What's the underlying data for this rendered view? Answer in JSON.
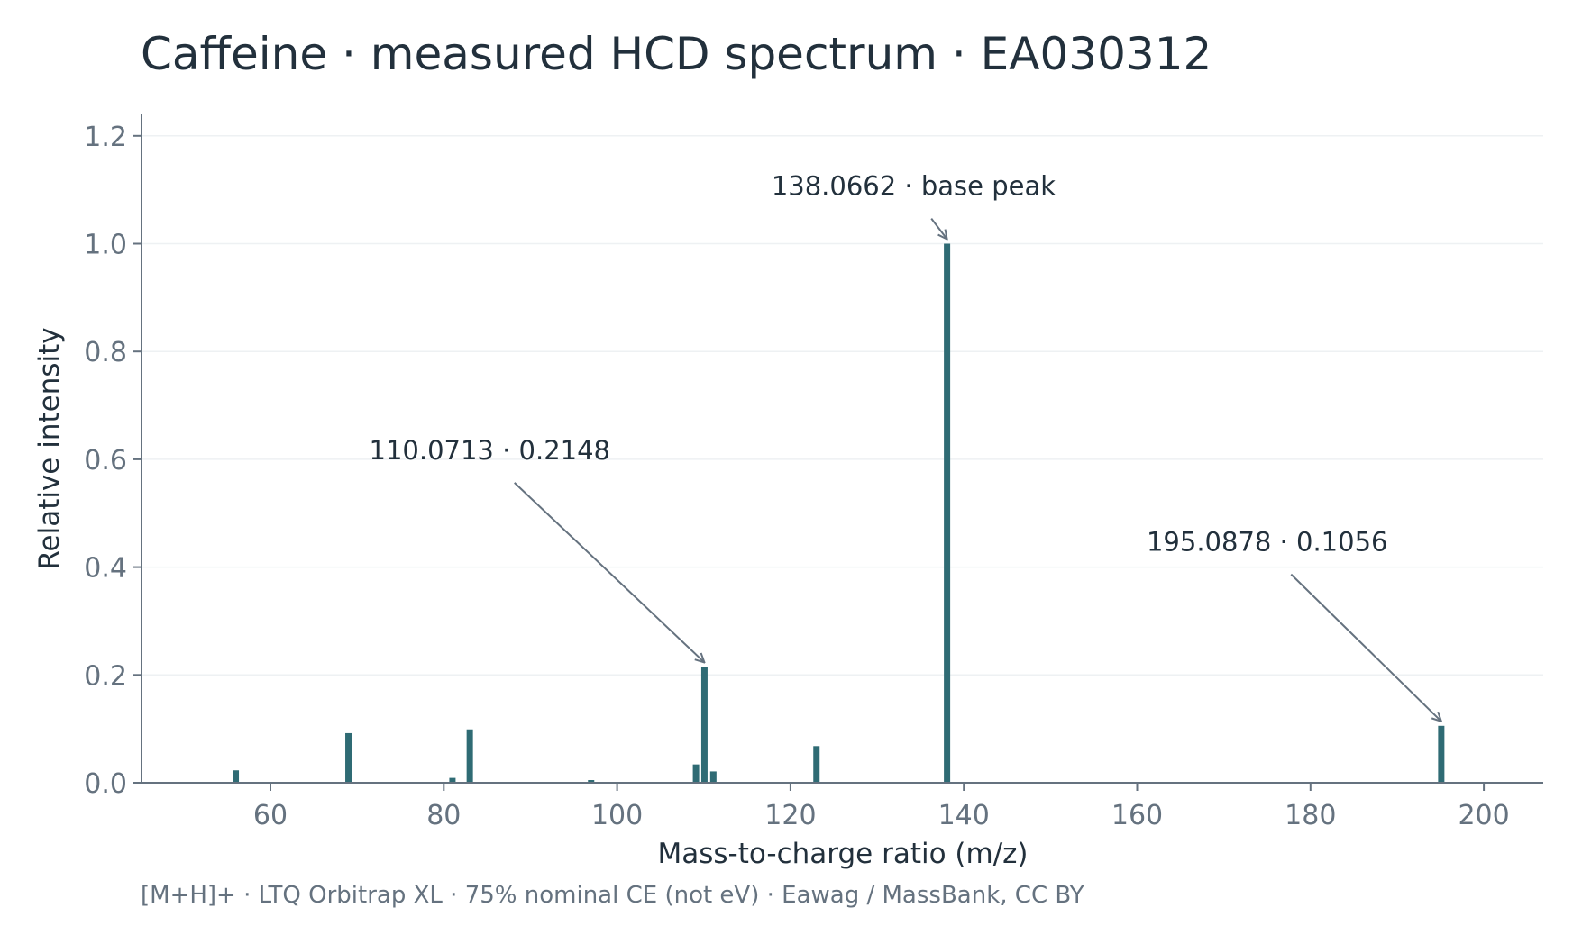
{
  "chart_data": {
    "type": "bar",
    "title": "Caffeine · measured HCD spectrum · EA030312",
    "xlabel": "Mass-to-charge ratio (m/z)",
    "ylabel": "Relative intensity",
    "footnote": "[M+H]+ · LTQ Orbitrap XL · 75% nominal CE (not eV) · Eawag / MassBank, CC BY",
    "xlim": [
      45.2,
      207.1
    ],
    "ylim": [
      0,
      1.24
    ],
    "xticks": [
      60,
      80,
      100,
      120,
      140,
      160,
      180,
      200
    ],
    "xtick_labels": [
      "60",
      "80",
      "100",
      "120",
      "140",
      "160",
      "180",
      "200"
    ],
    "yticks": [
      0.0,
      0.2,
      0.4,
      0.6,
      0.8,
      1.0,
      1.2
    ],
    "ytick_labels": [
      "0.0",
      "0.2",
      "0.4",
      "0.6",
      "0.8",
      "1.0",
      "1.2"
    ],
    "grid": "horizontal",
    "bar_color": "#2f6b74",
    "peaks": [
      {
        "mz": 56.0,
        "intensity": 0.023
      },
      {
        "mz": 69.0,
        "intensity": 0.092
      },
      {
        "mz": 81.0,
        "intensity": 0.009
      },
      {
        "mz": 83.0,
        "intensity": 0.099
      },
      {
        "mz": 97.0,
        "intensity": 0.005
      },
      {
        "mz": 109.1,
        "intensity": 0.034
      },
      {
        "mz": 110.0713,
        "intensity": 0.2148
      },
      {
        "mz": 111.1,
        "intensity": 0.021
      },
      {
        "mz": 123.0,
        "intensity": 0.068
      },
      {
        "mz": 138.0662,
        "intensity": 1.0
      },
      {
        "mz": 195.0878,
        "intensity": 0.1056
      }
    ],
    "annotations": [
      {
        "text": "110.0713 · 0.2148",
        "mz": 110.0713,
        "intensity": 0.2148,
        "text_mz": 85.3,
        "text_intensity": 0.6
      },
      {
        "text": "138.0662 · base peak",
        "mz": 138.0662,
        "intensity": 1.0,
        "text_mz": 134.2,
        "text_intensity": 1.09
      },
      {
        "text": "195.0878 · 0.1056",
        "mz": 195.0878,
        "intensity": 0.1056,
        "text_mz": 175.0,
        "text_intensity": 0.43
      }
    ]
  }
}
